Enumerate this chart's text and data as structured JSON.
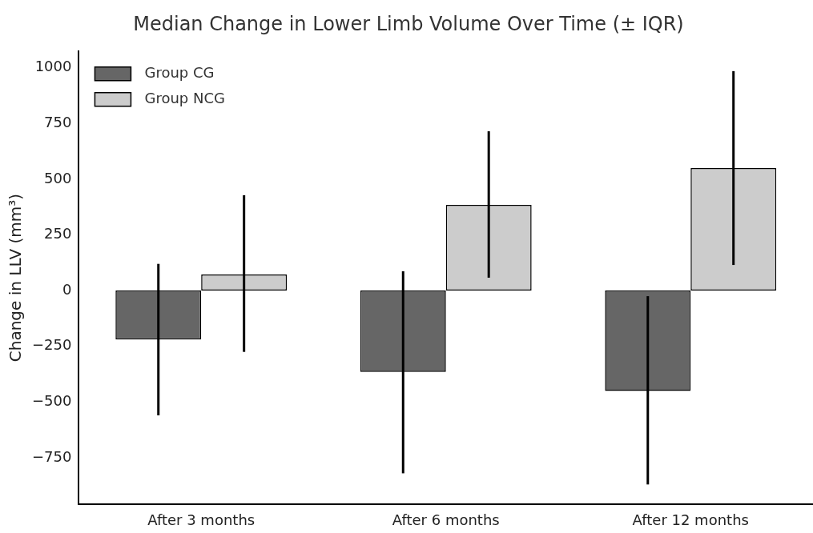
{
  "chart_data": {
    "type": "bar",
    "title": "Median Change in Lower Limb Volume Over Time (± IQR)",
    "ylabel": "Change in LLV (mm³)",
    "categories": [
      "After 3 months",
      "After 6 months",
      "After 12 months"
    ],
    "series": [
      {
        "name": "Group CG",
        "color": "#666666",
        "values": [
          -220,
          -365,
          -450
        ],
        "errors": [
          [
            -560,
            120
          ],
          [
            -820,
            87
          ],
          [
            -870,
            -25
          ]
        ]
      },
      {
        "name": "Group NCG",
        "color": "#cccccc",
        "values": [
          72,
          385,
          550
        ],
        "errors": [
          [
            -275,
            428
          ],
          [
            58,
            715
          ],
          [
            115,
            985
          ]
        ]
      }
    ],
    "ylim": [
      -960,
      1075
    ],
    "yticks": [
      {
        "value": -750,
        "label": "−750"
      },
      {
        "value": -500,
        "label": "−500"
      },
      {
        "value": -250,
        "label": "−250"
      },
      0,
      250,
      500,
      750,
      1000
    ],
    "grid": false,
    "legend": "top left"
  }
}
